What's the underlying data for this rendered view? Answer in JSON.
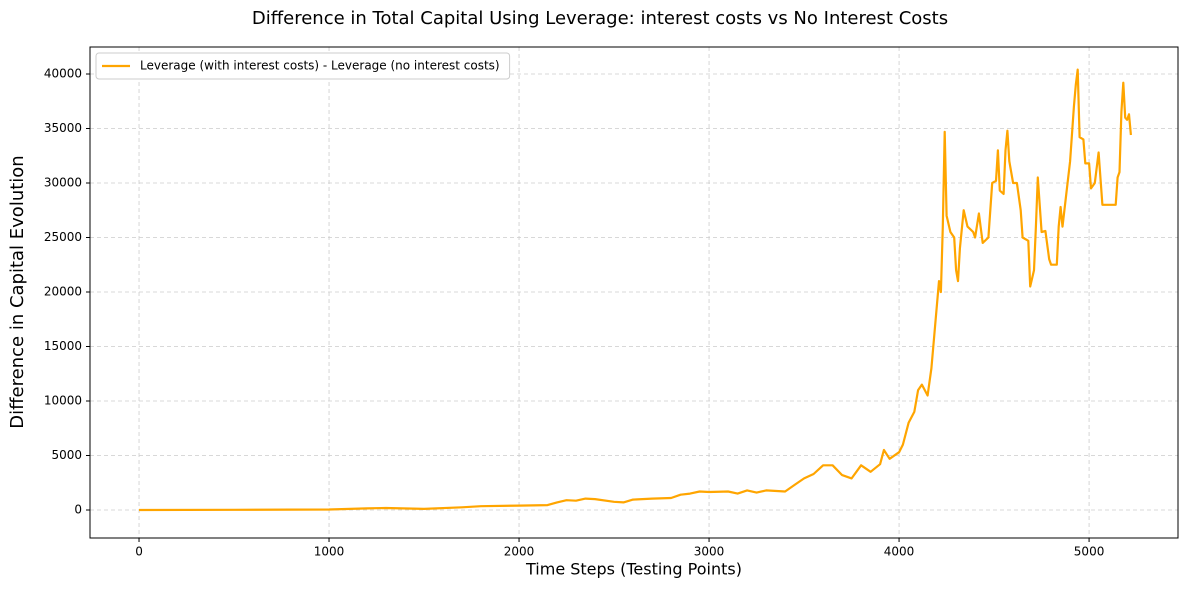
{
  "chart_data": {
    "type": "line",
    "title": "Difference in Total Capital Using Leverage: interest costs vs No Interest Costs",
    "x_label": "Time Steps (Testing Points)",
    "y_label": "Difference in Capital Evolution",
    "x": [
      0,
      500,
      1000,
      1200,
      1300,
      1500,
      1700,
      1800,
      2000,
      2150,
      2200,
      2250,
      2300,
      2350,
      2400,
      2500,
      2550,
      2600,
      2700,
      2800,
      2850,
      2900,
      2950,
      3000,
      3100,
      3150,
      3200,
      3250,
      3300,
      3400,
      3450,
      3500,
      3550,
      3600,
      3650,
      3700,
      3750,
      3800,
      3850,
      3900,
      3920,
      3950,
      4000,
      4020,
      4050,
      4080,
      4100,
      4120,
      4150,
      4170,
      4190,
      4210,
      4220,
      4230,
      4240,
      4250,
      4270,
      4290,
      4300,
      4310,
      4320,
      4340,
      4360,
      4390,
      4400,
      4420,
      4440,
      4470,
      4490,
      4510,
      4520,
      4530,
      4550,
      4560,
      4570,
      4580,
      4600,
      4620,
      4640,
      4650,
      4680,
      4690,
      4710,
      4720,
      4730,
      4750,
      4770,
      4790,
      4800,
      4830,
      4840,
      4850,
      4860,
      4880,
      4900,
      4920,
      4930,
      4940,
      4950,
      4970,
      4980,
      5000,
      5010,
      5030,
      5050,
      5070,
      5100,
      5140,
      5150,
      5160,
      5170,
      5180,
      5190,
      5200,
      5210,
      5220
    ],
    "series": [
      {
        "name": "Leverage (with interest costs) - Leverage (no interest costs)",
        "color": "#ffa500",
        "values": [
          0,
          20,
          50,
          150,
          180,
          100,
          250,
          350,
          400,
          450,
          700,
          900,
          850,
          1050,
          1000,
          750,
          700,
          950,
          1050,
          1100,
          1400,
          1500,
          1700,
          1650,
          1700,
          1500,
          1800,
          1600,
          1800,
          1700,
          2300,
          2900,
          3300,
          4100,
          4100,
          3200,
          2900,
          4100,
          3500,
          4200,
          5500,
          4700,
          5300,
          6000,
          8000,
          9000,
          11000,
          11500,
          10500,
          13000,
          17000,
          21000,
          20000,
          26000,
          34700,
          27000,
          25500,
          25000,
          22000,
          21000,
          24000,
          27500,
          26000,
          25500,
          25000,
          27200,
          24500,
          25000,
          30000,
          30200,
          33000,
          29300,
          29000,
          33000,
          34800,
          32000,
          30000,
          30000,
          27500,
          25000,
          24700,
          20500,
          22000,
          26000,
          30500,
          25500,
          25600,
          23000,
          22500,
          22500,
          26000,
          27800,
          26000,
          29000,
          32000,
          37000,
          39000,
          40400,
          34200,
          34000,
          31800,
          31800,
          29500,
          30000,
          32800,
          28000,
          28000,
          28000,
          30500,
          31000,
          36500,
          39200,
          36000,
          35800,
          36300,
          34400
        ]
      }
    ],
    "xlim": [
      -258,
      5468
    ],
    "ylim": [
      -2569,
      42477
    ],
    "xticks": [
      0,
      1000,
      2000,
      3000,
      4000,
      5000
    ],
    "yticks": [
      0,
      5000,
      10000,
      15000,
      20000,
      25000,
      30000,
      35000,
      40000
    ],
    "grid": true,
    "legend": "upper left"
  }
}
